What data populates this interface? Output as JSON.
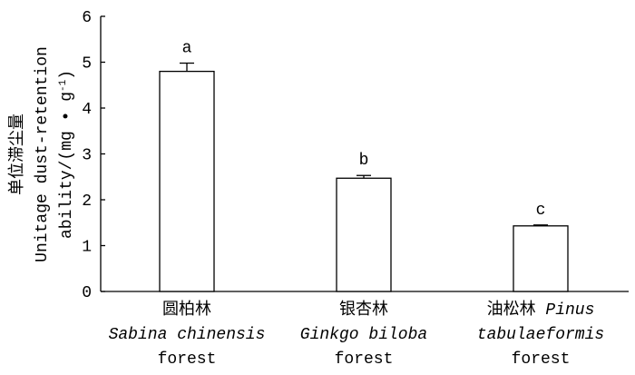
{
  "chart_data": {
    "type": "bar",
    "ylabel": [
      [
        {
          "text": "单位滞尘量"
        }
      ],
      [
        {
          "text": "Unitage dust-retention"
        }
      ],
      [
        {
          "text": "ability/(mg • g"
        },
        {
          "text": "-1",
          "sup": true
        },
        {
          "text": ")"
        }
      ]
    ],
    "categories": [
      {
        "lines": [
          [
            {
              "text": "圆柏林"
            }
          ],
          [
            {
              "text": "Sabina chinensis",
              "italic": true
            }
          ],
          [
            {
              "text": "forest"
            }
          ]
        ]
      },
      {
        "lines": [
          [
            {
              "text": "银杏林"
            }
          ],
          [
            {
              "text": "Ginkgo biloba",
              "italic": true
            }
          ],
          [
            {
              "text": "forest"
            }
          ]
        ]
      },
      {
        "lines": [
          [
            {
              "text": "油松林 "
            },
            {
              "text": "Pinus",
              "italic": true
            }
          ],
          [
            {
              "text": "tabulaeformis",
              "italic": true
            }
          ],
          [
            {
              "text": "forest"
            }
          ]
        ]
      }
    ],
    "values": [
      4.8,
      2.47,
      1.43
    ],
    "errors": [
      0.18,
      0.06,
      0.02
    ],
    "annotations": [
      "a",
      "b",
      "c"
    ],
    "color": "#ffffff",
    "ylim": [
      0,
      6
    ],
    "yticks": [
      0,
      1,
      2,
      3,
      4,
      5,
      6
    ]
  }
}
